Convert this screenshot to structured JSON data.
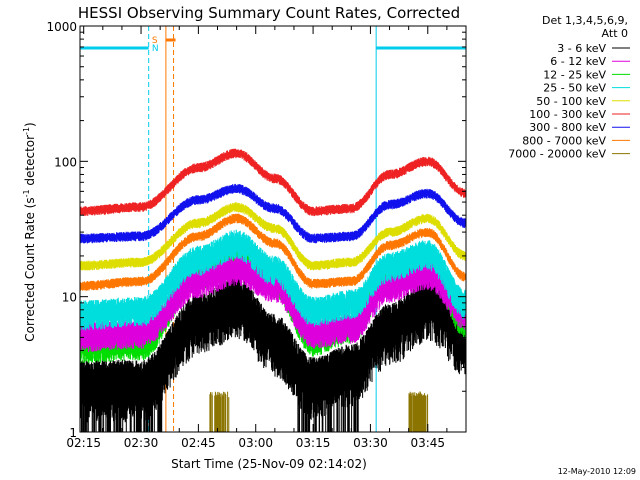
{
  "chart_data": {
    "type": "line",
    "title": "HESSI Observing Summary Count Rates, Corrected",
    "xlabel": "Start Time (25-Nov-09 02:14:02)",
    "ylabel_main": "Corrected Count Rate (s",
    "ylabel_sup1": "-1",
    "ylabel_mid": " detector",
    "ylabel_sup2": "-1",
    "ylabel_end": ")",
    "yscale": "log",
    "ylim": [
      1,
      1000
    ],
    "xlim": [
      "02:14:02",
      "03:55:00"
    ],
    "x_ticks": [
      "02:15",
      "02:30",
      "02:45",
      "03:00",
      "03:15",
      "03:30",
      "03:45"
    ],
    "y_ticks": [
      "1",
      "10",
      "100",
      "1000"
    ],
    "legend_header_1": "Det 1,3,4,5,6,9,",
    "legend_header_2": "Att 0",
    "legend_placement": "right",
    "footer_date": "12-May-2010 12:09",
    "markers": {
      "saa_label": "S",
      "night_label": "N",
      "night_intervals": [
        [
          "02:14:02",
          "02:32:00"
        ],
        [
          "03:31:30",
          "03:55:00"
        ]
      ],
      "saa_interval": [
        "02:36:30",
        "02:38:30"
      ]
    },
    "series": [
      {
        "name": "3 - 6 keV",
        "color": "#000000",
        "knots_x": [
          "02:14",
          "02:30",
          "02:45",
          "02:55",
          "03:05",
          "03:15",
          "03:25",
          "03:35",
          "03:45",
          "03:55"
        ],
        "values": [
          2.3,
          2.3,
          7,
          9.5,
          5,
          2.4,
          3,
          6,
          9,
          5
        ]
      },
      {
        "name": "6 - 12 keV",
        "color": "#dd00dd",
        "knots_x": [
          "02:14",
          "02:30",
          "02:45",
          "02:55",
          "03:05",
          "03:15",
          "03:25",
          "03:35",
          "03:45",
          "03:55"
        ],
        "values": [
          5.2,
          5.5,
          13,
          16,
          12,
          5.5,
          6,
          12,
          15,
          7.5
        ]
      },
      {
        "name": "12 - 25 keV",
        "color": "#00dd00",
        "knots_x": [
          "02:14",
          "02:30",
          "02:45",
          "02:55",
          "03:05",
          "03:15",
          "03:25",
          "03:35",
          "03:45",
          "03:55"
        ],
        "values": [
          4.3,
          4.5,
          15,
          20,
          13,
          4.8,
          6,
          14,
          18,
          6.5
        ]
      },
      {
        "name": "25 - 50 keV",
        "color": "#00dddd",
        "knots_x": [
          "02:14",
          "02:30",
          "02:45",
          "02:55",
          "03:05",
          "03:15",
          "03:25",
          "03:35",
          "03:45",
          "03:55"
        ],
        "values": [
          7.5,
          8,
          19,
          25,
          16,
          8,
          9,
          17,
          21,
          9
        ]
      },
      {
        "name": "50 - 100 keV",
        "color": "#dddd00",
        "knots_x": [
          "02:14",
          "02:30",
          "02:45",
          "02:55",
          "03:05",
          "03:15",
          "03:25",
          "03:35",
          "03:45",
          "03:55"
        ],
        "values": [
          17,
          18,
          35,
          46,
          32,
          17,
          18,
          30,
          38,
          20
        ]
      },
      {
        "name": "100 - 300 keV",
        "color": "#ee2222",
        "knots_x": [
          "02:14",
          "02:30",
          "02:45",
          "02:55",
          "03:05",
          "03:15",
          "03:25",
          "03:35",
          "03:45",
          "03:55"
        ],
        "values": [
          43,
          46,
          90,
          115,
          75,
          43,
          45,
          80,
          100,
          58
        ]
      },
      {
        "name": "300 - 800 keV",
        "color": "#1111ee",
        "knots_x": [
          "02:14",
          "02:30",
          "02:45",
          "02:55",
          "03:05",
          "03:15",
          "03:25",
          "03:35",
          "03:45",
          "03:55"
        ],
        "values": [
          27,
          28,
          52,
          63,
          45,
          27,
          28,
          48,
          58,
          35
        ]
      },
      {
        "name": "800 - 7000 keV",
        "color": "#ff7700",
        "knots_x": [
          "02:14",
          "02:30",
          "02:45",
          "02:55",
          "03:05",
          "03:15",
          "03:25",
          "03:35",
          "03:45",
          "03:55"
        ],
        "values": [
          12,
          13,
          28,
          38,
          25,
          12.5,
          13,
          24,
          30,
          14
        ]
      },
      {
        "name": "7000 - 20000 keV",
        "color": "#8b7500",
        "knots_x": [
          "02:48",
          "02:53",
          "03:40",
          "03:45"
        ],
        "values": [
          1.9,
          1.9,
          1.9,
          1.9
        ],
        "note": "sparse bursts"
      }
    ]
  }
}
